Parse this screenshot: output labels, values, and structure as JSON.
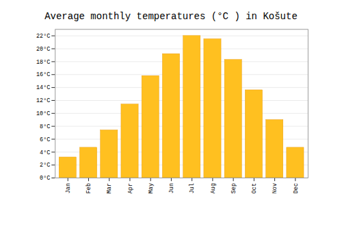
{
  "chart_data": {
    "type": "bar",
    "title": "Average monthly temperatures (°C ) in Košute",
    "categories": [
      "Jan",
      "Feb",
      "Mar",
      "Apr",
      "May",
      "Jun",
      "Jul",
      "Aug",
      "Sep",
      "Oct",
      "Nov",
      "Dec"
    ],
    "values": [
      3.2,
      4.7,
      7.4,
      11.4,
      15.8,
      19.2,
      22.0,
      21.5,
      18.3,
      13.6,
      9.0,
      4.7
    ],
    "color": "#FFC020",
    "ylim": [
      0,
      23
    ],
    "yticks": [
      {
        "value": 0,
        "label": "0°C"
      },
      {
        "value": 2,
        "label": "2°C"
      },
      {
        "value": 4,
        "label": "4°C"
      },
      {
        "value": 6,
        "label": "6°C"
      },
      {
        "value": 8,
        "label": "8°C"
      },
      {
        "value": 10,
        "label": "10°C"
      },
      {
        "value": 12,
        "label": "12°C"
      },
      {
        "value": 14,
        "label": "14°C"
      },
      {
        "value": 16,
        "label": "16°C"
      },
      {
        "value": 18,
        "label": "18°C"
      },
      {
        "value": 20,
        "label": "20°C"
      },
      {
        "value": 22,
        "label": "22°C"
      }
    ],
    "grid": true
  }
}
